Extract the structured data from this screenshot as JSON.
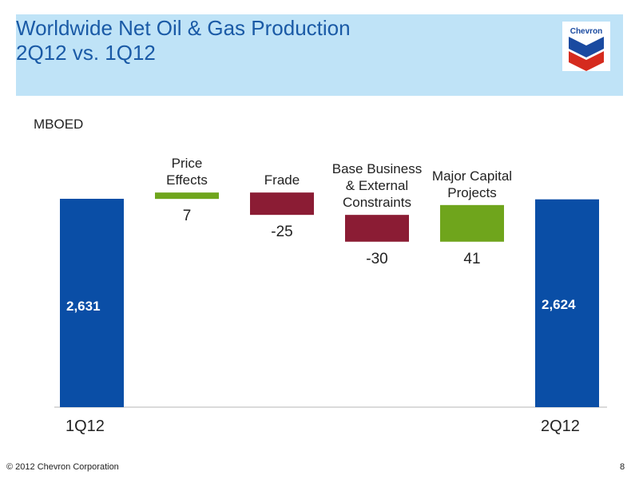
{
  "header": {
    "title_line1": "Worldwide Net Oil & Gas Production",
    "title_line2": "2Q12 vs. 1Q12",
    "logo_text": "Chevron"
  },
  "unit_label": "MBOED",
  "footer": {
    "copyright": "© 2012 Chevron Corporation",
    "page_number": "8"
  },
  "colors": {
    "total_bar": "#0a4ea6",
    "increase": "#6fa51c",
    "decrease": "#8b1c34",
    "header_bg": "#bfe3f7",
    "title": "#1a5aa6"
  },
  "chart_data": {
    "type": "bar",
    "subtype": "waterfall",
    "ylabel": "MBOED",
    "categories": [
      "1Q12",
      "Price Effects",
      "Frade",
      "Base Business & External Constraints",
      "Major Capital Projects",
      "2Q12"
    ],
    "category_label_lines": [
      [
        "1Q12"
      ],
      [
        "Price",
        "Effects"
      ],
      [
        "Frade"
      ],
      [
        "Base Business",
        "& External",
        "Constraints"
      ],
      [
        "Major Capital",
        "Projects"
      ],
      [
        "2Q12"
      ]
    ],
    "values": [
      2631,
      7,
      -25,
      -30,
      41,
      2624
    ],
    "value_labels": [
      "2,631",
      "7",
      "-25",
      "-30",
      "41",
      "2,624"
    ],
    "kinds": [
      "total",
      "delta",
      "delta",
      "delta",
      "delta",
      "total"
    ],
    "grid": false,
    "legend": false
  }
}
